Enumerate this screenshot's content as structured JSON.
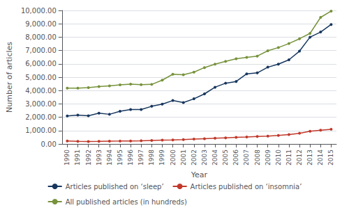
{
  "chart_data": {
    "type": "line",
    "xlabel": "Year",
    "ylabel": "Number of articles",
    "x": [
      1990,
      1991,
      1992,
      1993,
      1994,
      1995,
      1996,
      1997,
      1998,
      1999,
      2000,
      2001,
      2002,
      2003,
      2004,
      2005,
      2006,
      2007,
      2008,
      2009,
      2010,
      2011,
      2012,
      2013,
      2014,
      2015
    ],
    "series": [
      {
        "name": "Articles published on ‘sleep’",
        "color": "#17375E",
        "marker": "circle",
        "values": [
          2100,
          2160,
          2110,
          2300,
          2220,
          2450,
          2580,
          2580,
          2820,
          2980,
          3250,
          3100,
          3380,
          3750,
          4250,
          4550,
          4680,
          5250,
          5320,
          5750,
          5980,
          6300,
          6950,
          8000,
          8380,
          8950
        ]
      },
      {
        "name": "Articles published on ‘insomnia’",
        "color": "#C0392B",
        "marker": "circle",
        "values": [
          220,
          190,
          185,
          195,
          210,
          215,
          225,
          240,
          265,
          285,
          295,
          325,
          360,
          395,
          430,
          460,
          490,
          520,
          555,
          590,
          635,
          700,
          800,
          950,
          1025,
          1100
        ]
      },
      {
        "name": "All published articles (in hundreds)",
        "color": "#77933C",
        "marker": "circle",
        "values": [
          4180,
          4180,
          4220,
          4300,
          4350,
          4430,
          4480,
          4440,
          4460,
          4780,
          5220,
          5180,
          5380,
          5720,
          5980,
          6180,
          6380,
          6480,
          6580,
          6980,
          7220,
          7520,
          7880,
          8280,
          9480,
          9950
        ]
      }
    ],
    "xlim": [
      1989.5,
      2015.5
    ],
    "xticks": [
      1990,
      1991,
      1992,
      1993,
      1994,
      1995,
      1996,
      1997,
      1998,
      1999,
      2000,
      2001,
      2002,
      2003,
      2004,
      2005,
      2006,
      2007,
      2008,
      2009,
      2010,
      2011,
      2012,
      2013,
      2014,
      2015
    ],
    "ylim": [
      0,
      10000
    ],
    "yticks": [
      {
        "value": 0,
        "label": "0.00"
      },
      {
        "value": 1000,
        "label": "1,000.00"
      },
      {
        "value": 2000,
        "label": "2,000.00"
      },
      {
        "value": 3000,
        "label": "3,000.00"
      },
      {
        "value": 4000,
        "label": "4,000.00"
      },
      {
        "value": 5000,
        "label": "5,000.00"
      },
      {
        "value": 6000,
        "label": "6,000.00"
      },
      {
        "value": 7000,
        "label": "7,000.00"
      },
      {
        "value": 8000,
        "label": "8,000.00"
      },
      {
        "value": 9000,
        "label": "9,000.00"
      },
      {
        "value": 10000,
        "label": "10,000.00"
      }
    ],
    "grid": true,
    "legend": "bottom"
  }
}
